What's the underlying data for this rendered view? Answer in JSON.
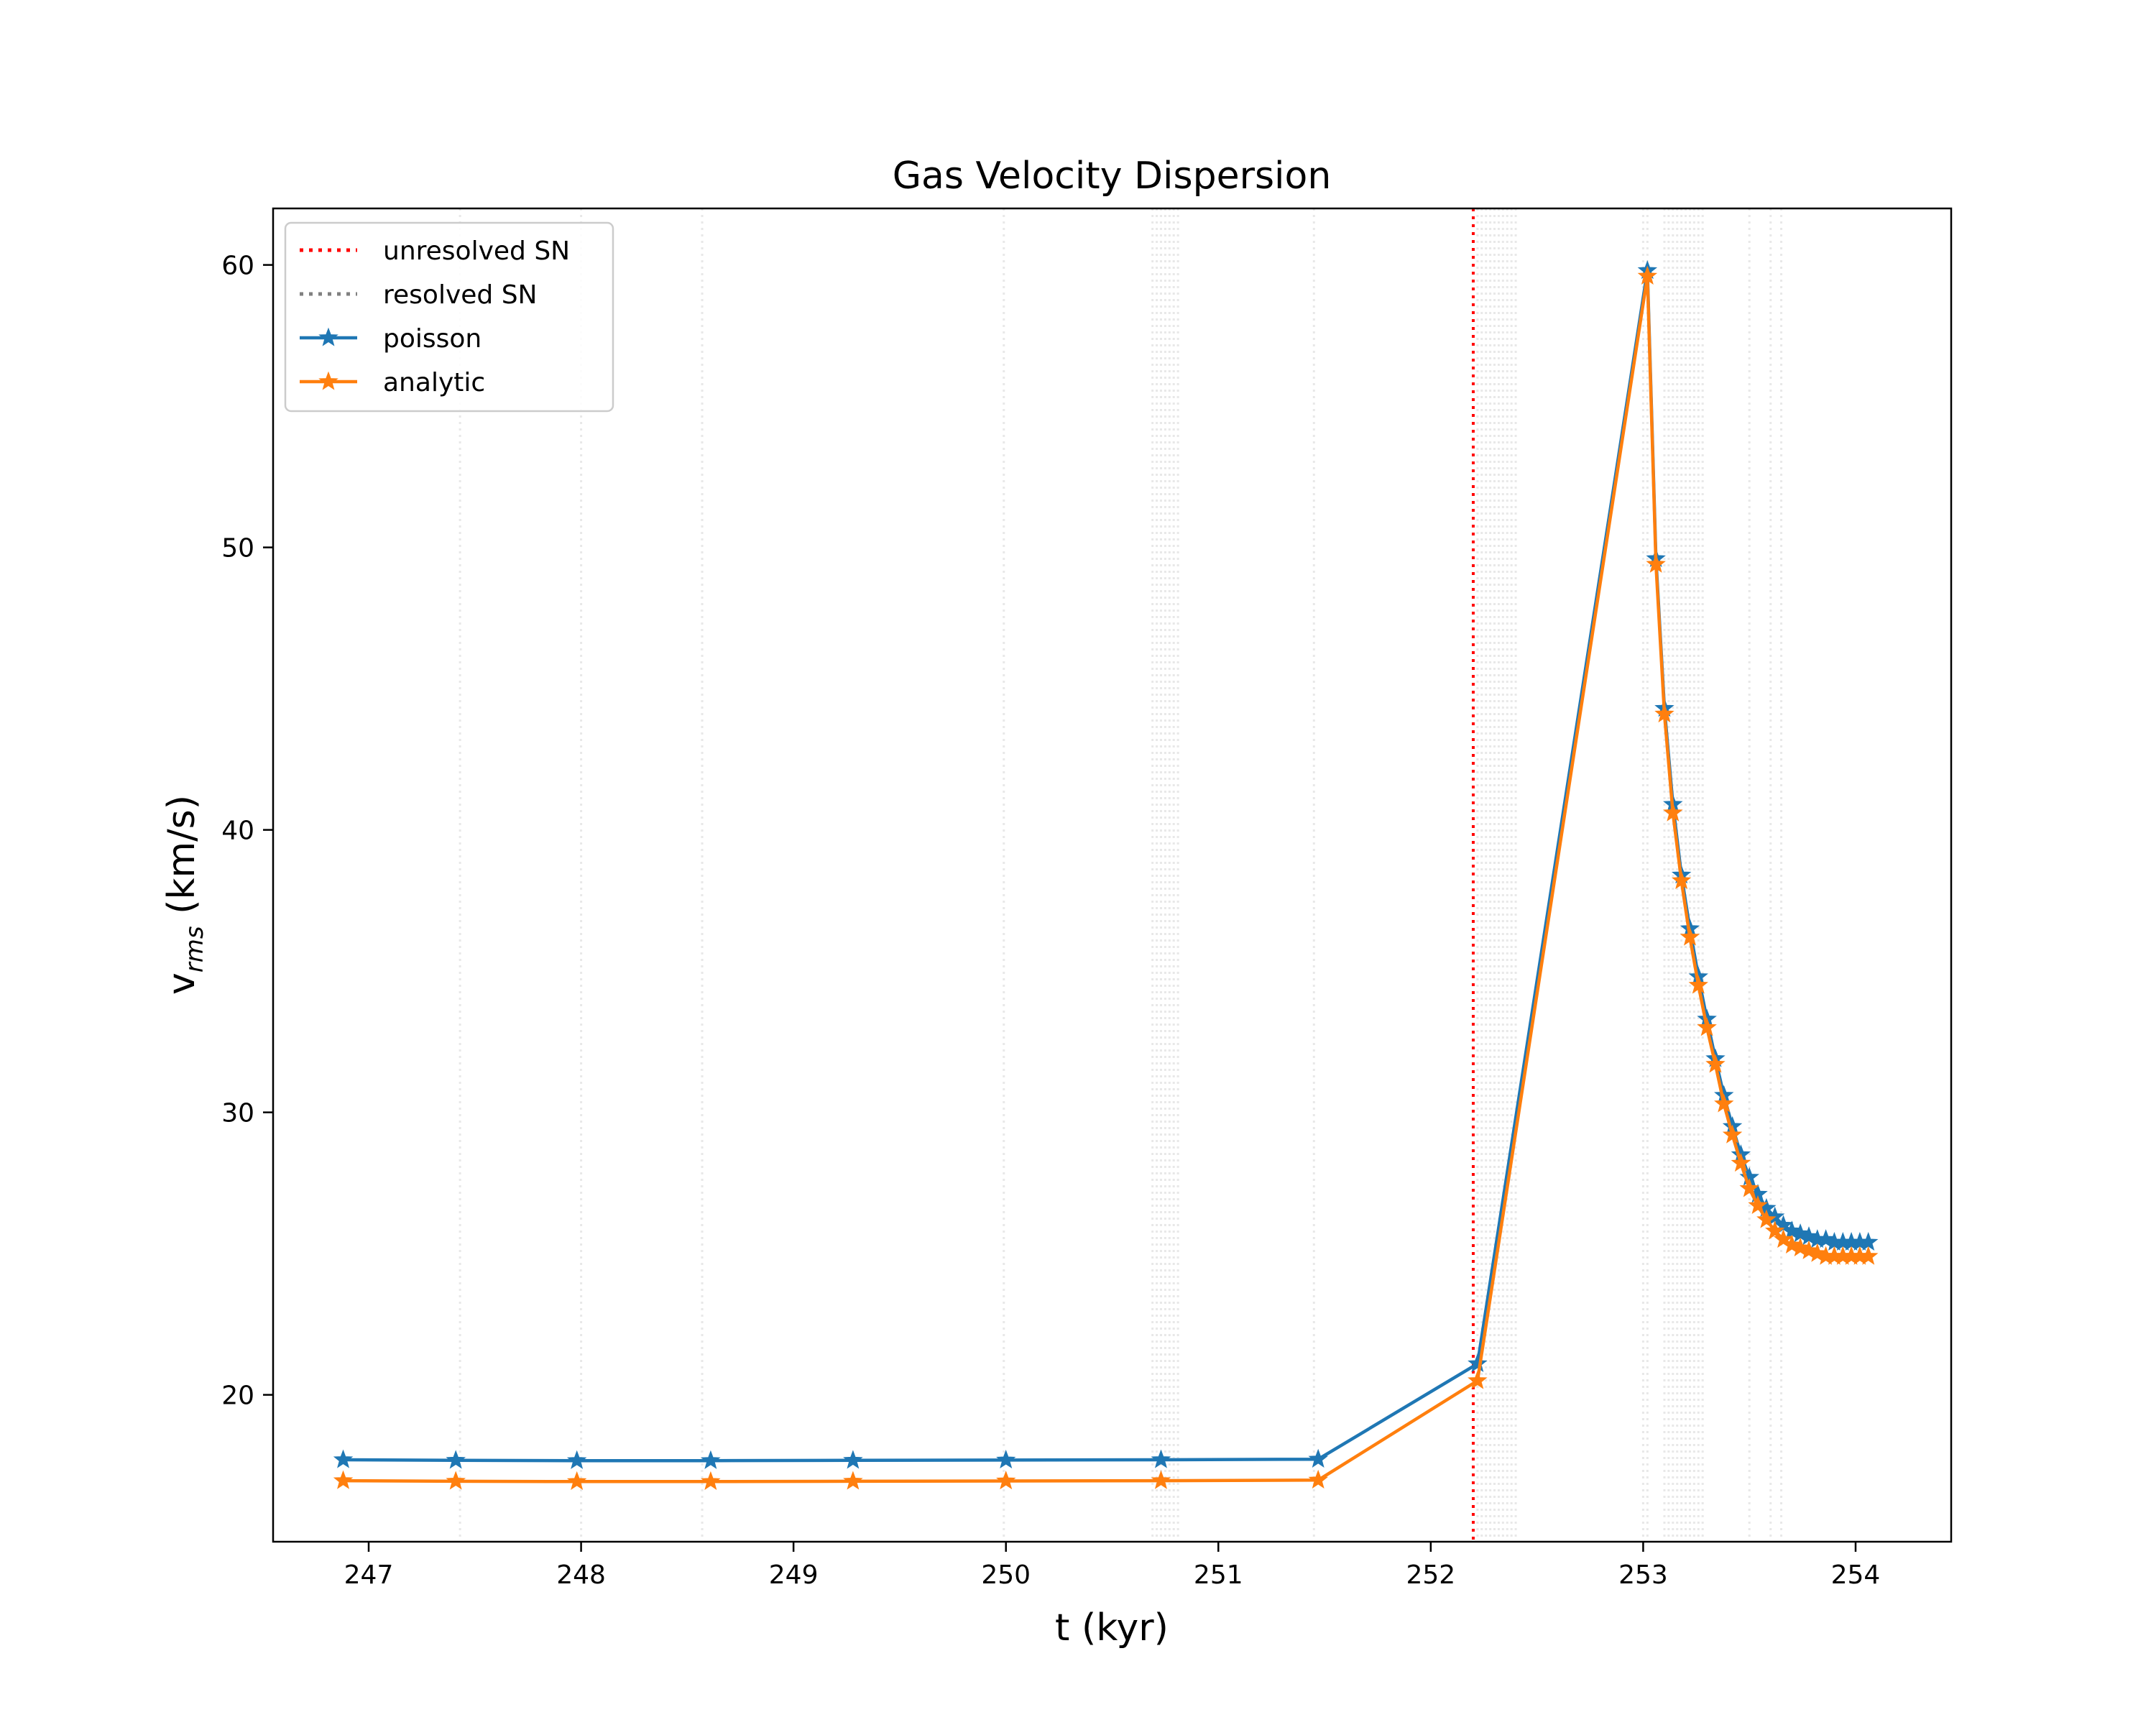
{
  "chart_data": {
    "type": "line",
    "title": "Gas Velocity Dispersion",
    "xlabel": "t (kyr)",
    "ylabel_base": "v",
    "ylabel_sub": "rms",
    "ylabel_unit": " (km/s)",
    "xlim": [
      246.55,
      254.45
    ],
    "ylim": [
      14.8,
      62.0
    ],
    "xticks": [
      247,
      248,
      249,
      250,
      251,
      252,
      253,
      254
    ],
    "yticks": [
      20,
      30,
      40,
      50,
      60
    ],
    "grid": false,
    "legend_position": "upper-left",
    "legend": [
      {
        "label": "unresolved SN",
        "style": "dotted",
        "color": "#ff0000"
      },
      {
        "label": "resolved SN",
        "style": "dotted",
        "color": "#808080"
      },
      {
        "label": "poisson",
        "style": "line-star",
        "color": "#1f77b4"
      },
      {
        "label": "analytic",
        "style": "line-star",
        "color": "#ff7f0e"
      }
    ],
    "unresolved_sn_t": [
      252.2
    ],
    "resolved_sn_t": [
      247.43,
      248.0,
      248.57,
      249.99,
      250.69,
      250.71,
      250.73,
      250.75,
      250.77,
      250.79,
      250.81,
      251.45,
      252.22,
      252.24,
      252.26,
      252.28,
      252.3,
      252.32,
      252.34,
      252.36,
      252.38,
      252.4,
      253.0,
      253.02,
      253.1,
      253.12,
      253.14,
      253.16,
      253.18,
      253.2,
      253.22,
      253.24,
      253.26,
      253.28,
      253.5,
      253.6,
      253.65
    ],
    "x": [
      246.88,
      247.41,
      247.98,
      248.61,
      249.28,
      250.0,
      250.73,
      251.47,
      252.22,
      253.02,
      253.06,
      253.1,
      253.14,
      253.18,
      253.22,
      253.26,
      253.3,
      253.34,
      253.38,
      253.42,
      253.46,
      253.5,
      253.54,
      253.58,
      253.62,
      253.66,
      253.7,
      253.74,
      253.78,
      253.82,
      253.86,
      253.9,
      253.94,
      253.98,
      254.02,
      254.06
    ],
    "series": [
      {
        "name": "poisson",
        "color": "#1f77b4",
        "values": [
          17.7,
          17.68,
          17.67,
          17.67,
          17.68,
          17.69,
          17.7,
          17.72,
          21.1,
          59.8,
          49.6,
          44.3,
          40.9,
          38.4,
          36.5,
          34.8,
          33.3,
          31.9,
          30.6,
          29.5,
          28.5,
          27.7,
          27.1,
          26.6,
          26.3,
          26.0,
          25.8,
          25.7,
          25.6,
          25.5,
          25.5,
          25.4,
          25.4,
          25.4,
          25.4,
          25.4
        ]
      },
      {
        "name": "analytic",
        "color": "#ff7f0e",
        "values": [
          16.96,
          16.94,
          16.93,
          16.93,
          16.94,
          16.95,
          16.96,
          16.98,
          20.5,
          59.6,
          49.4,
          44.1,
          40.6,
          38.2,
          36.2,
          34.5,
          33.0,
          31.7,
          30.3,
          29.2,
          28.2,
          27.3,
          26.7,
          26.2,
          25.8,
          25.5,
          25.3,
          25.2,
          25.1,
          25.0,
          24.9,
          24.9,
          24.9,
          24.9,
          24.9,
          24.9
        ]
      }
    ]
  }
}
